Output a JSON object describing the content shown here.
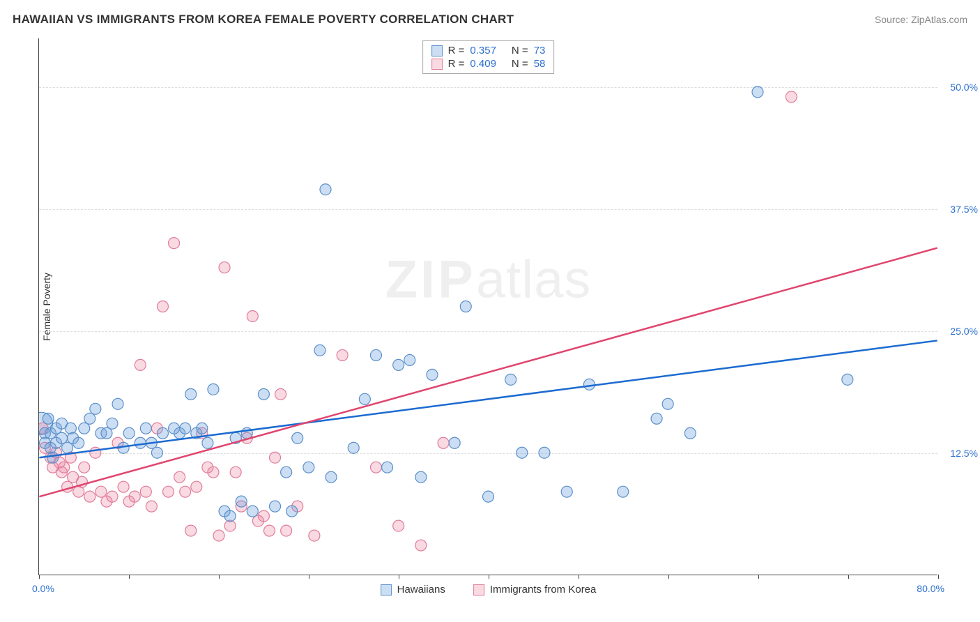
{
  "title": "HAWAIIAN VS IMMIGRANTS FROM KOREA FEMALE POVERTY CORRELATION CHART",
  "source": "Source: ZipAtlas.com",
  "watermark_bold": "ZIP",
  "watermark_light": "atlas",
  "y_axis_title": "Female Poverty",
  "chart": {
    "type": "scatter",
    "xlim": [
      0,
      80
    ],
    "ylim": [
      0,
      55
    ],
    "x_start_label": "0.0%",
    "x_end_label": "80.0%",
    "x_ticks": [
      0,
      8,
      16,
      24,
      32,
      40,
      48,
      56,
      64,
      72,
      80
    ],
    "y_gridlines": [
      {
        "v": 12.5,
        "label": "12.5%"
      },
      {
        "v": 25.0,
        "label": "25.0%"
      },
      {
        "v": 37.5,
        "label": "37.5%"
      },
      {
        "v": 50.0,
        "label": "50.0%"
      }
    ],
    "background_color": "#ffffff",
    "grid_color": "#dddddd",
    "axis_color": "#444444"
  },
  "series": {
    "hawaiians": {
      "label": "Hawaiians",
      "color_fill": "rgba(108,160,220,0.35)",
      "color_stroke": "#5a8fc9",
      "line_color": "#1c6bd0",
      "marker_r": 8,
      "R": "0.357",
      "N": "73",
      "trend": {
        "x1": 0,
        "y1": 12.0,
        "x2": 80,
        "y2": 24.0
      },
      "points": [
        [
          0.5,
          14.5
        ],
        [
          0.5,
          13.5
        ],
        [
          0.8,
          16.0
        ],
        [
          1.0,
          14.5
        ],
        [
          1.0,
          13.0
        ],
        [
          1.2,
          12.0
        ],
        [
          1.5,
          15.0
        ],
        [
          1.5,
          13.5
        ],
        [
          2.0,
          14.0
        ],
        [
          2.0,
          15.5
        ],
        [
          2.5,
          13.0
        ],
        [
          2.8,
          15.0
        ],
        [
          3.0,
          14.0
        ],
        [
          3.5,
          13.5
        ],
        [
          4.0,
          15.0
        ],
        [
          4.5,
          16.0
        ],
        [
          5.0,
          17.0
        ],
        [
          5.5,
          14.5
        ],
        [
          6.0,
          14.5
        ],
        [
          6.5,
          15.5
        ],
        [
          7.0,
          17.5
        ],
        [
          7.5,
          13.0
        ],
        [
          8.0,
          14.5
        ],
        [
          9.0,
          13.5
        ],
        [
          9.5,
          15.0
        ],
        [
          10.0,
          13.5
        ],
        [
          10.5,
          12.5
        ],
        [
          11.0,
          14.5
        ],
        [
          12.0,
          15.0
        ],
        [
          12.5,
          14.5
        ],
        [
          13.0,
          15.0
        ],
        [
          13.5,
          18.5
        ],
        [
          14.0,
          14.5
        ],
        [
          14.5,
          15.0
        ],
        [
          15.0,
          13.5
        ],
        [
          15.5,
          19.0
        ],
        [
          16.5,
          6.5
        ],
        [
          17.0,
          6.0
        ],
        [
          17.5,
          14.0
        ],
        [
          18.0,
          7.5
        ],
        [
          18.5,
          14.5
        ],
        [
          19.0,
          6.5
        ],
        [
          20.0,
          18.5
        ],
        [
          21.0,
          7.0
        ],
        [
          22.0,
          10.5
        ],
        [
          22.5,
          6.5
        ],
        [
          23.0,
          14.0
        ],
        [
          24.0,
          11.0
        ],
        [
          25.0,
          23.0
        ],
        [
          25.5,
          39.5
        ],
        [
          26.0,
          10.0
        ],
        [
          28.0,
          13.0
        ],
        [
          29.0,
          18.0
        ],
        [
          30.0,
          22.5
        ],
        [
          31.0,
          11.0
        ],
        [
          32.0,
          21.5
        ],
        [
          33.0,
          22.0
        ],
        [
          34.0,
          10.0
        ],
        [
          35.0,
          20.5
        ],
        [
          37.0,
          13.5
        ],
        [
          38.0,
          27.5
        ],
        [
          40.0,
          8.0
        ],
        [
          42.0,
          20.0
        ],
        [
          43.0,
          12.5
        ],
        [
          45.0,
          12.5
        ],
        [
          47.0,
          8.5
        ],
        [
          49.0,
          19.5
        ],
        [
          52.0,
          8.5
        ],
        [
          55.0,
          16.0
        ],
        [
          56.0,
          17.5
        ],
        [
          58.0,
          14.5
        ],
        [
          64.0,
          49.5
        ],
        [
          72.0,
          20.0
        ]
      ]
    },
    "korea": {
      "label": "Immigrants from Korea",
      "color_fill": "rgba(235,130,160,0.30)",
      "color_stroke": "#e07c9a",
      "line_color": "#e0456e",
      "marker_r": 8,
      "R": "0.409",
      "N": "58",
      "trend": {
        "x1": 0,
        "y1": 8.0,
        "x2": 80,
        "y2": 33.5
      },
      "points": [
        [
          0.3,
          15.0
        ],
        [
          0.5,
          13.0
        ],
        [
          1.0,
          12.0
        ],
        [
          1.2,
          11.0
        ],
        [
          1.5,
          12.5
        ],
        [
          1.8,
          11.5
        ],
        [
          2.0,
          10.5
        ],
        [
          2.2,
          11.0
        ],
        [
          2.5,
          9.0
        ],
        [
          2.8,
          12.0
        ],
        [
          3.0,
          10.0
        ],
        [
          3.5,
          8.5
        ],
        [
          3.8,
          9.5
        ],
        [
          4.0,
          11.0
        ],
        [
          4.5,
          8.0
        ],
        [
          5.0,
          12.5
        ],
        [
          5.5,
          8.5
        ],
        [
          6.0,
          7.5
        ],
        [
          6.5,
          8.0
        ],
        [
          7.0,
          13.5
        ],
        [
          7.5,
          9.0
        ],
        [
          8.0,
          7.5
        ],
        [
          8.5,
          8.0
        ],
        [
          9.0,
          21.5
        ],
        [
          9.5,
          8.5
        ],
        [
          10.0,
          7.0
        ],
        [
          10.5,
          15.0
        ],
        [
          11.0,
          27.5
        ],
        [
          11.5,
          8.5
        ],
        [
          12.0,
          34.0
        ],
        [
          12.5,
          10.0
        ],
        [
          13.0,
          8.5
        ],
        [
          13.5,
          4.5
        ],
        [
          14.0,
          9.0
        ],
        [
          14.5,
          14.5
        ],
        [
          15.0,
          11.0
        ],
        [
          15.5,
          10.5
        ],
        [
          16.0,
          4.0
        ],
        [
          16.5,
          31.5
        ],
        [
          17.0,
          5.0
        ],
        [
          17.5,
          10.5
        ],
        [
          18.0,
          7.0
        ],
        [
          18.5,
          14.0
        ],
        [
          19.0,
          26.5
        ],
        [
          19.5,
          5.5
        ],
        [
          20.0,
          6.0
        ],
        [
          20.5,
          4.5
        ],
        [
          21.0,
          12.0
        ],
        [
          21.5,
          18.5
        ],
        [
          22.0,
          4.5
        ],
        [
          23.0,
          7.0
        ],
        [
          24.5,
          4.0
        ],
        [
          27.0,
          22.5
        ],
        [
          30.0,
          11.0
        ],
        [
          32.0,
          5.0
        ],
        [
          34.0,
          3.0
        ],
        [
          36.0,
          13.5
        ],
        [
          67.0,
          49.0
        ]
      ]
    }
  },
  "legend_labels": {
    "R_prefix": "R  =",
    "N_prefix": "N  ="
  }
}
